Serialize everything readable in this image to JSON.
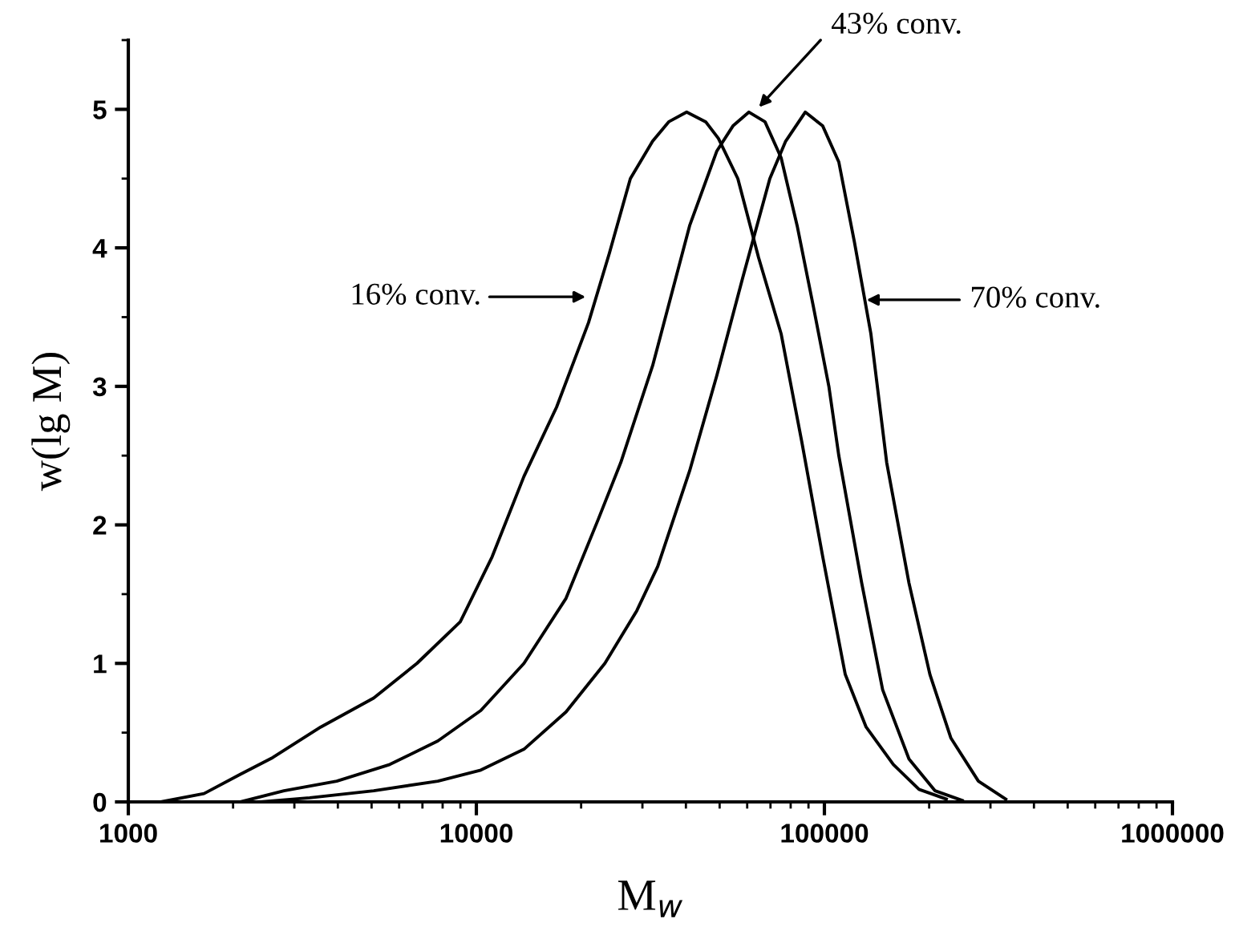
{
  "chart_data": {
    "type": "line",
    "xlabel": "M$_{w}$",
    "ylabel": "w(lg M)",
    "log": "x",
    "xlim": [
      1000,
      1000000
    ],
    "xticks": [
      1000,
      10000,
      100000,
      1000000
    ],
    "ylim": [
      0,
      5.5
    ],
    "yticks": [
      0,
      1,
      2,
      3,
      4,
      5
    ],
    "grid": false,
    "legend": false,
    "marker": "none",
    "line_style": "solid",
    "series": [
      {
        "color": "#000000",
        "x": [
          1240,
          1650,
          2100,
          2600,
          3570,
          5070,
          6750,
          8990,
          11100,
          13700,
          17000,
          21000,
          24100,
          27700,
          32100,
          35700,
          40200,
          45600,
          49600,
          56400,
          64700,
          75100,
          86100,
          98900,
          114800,
          131800,
          157800,
          187000,
          224000
        ],
        "values": [
          0,
          0.06,
          0.2,
          0.32,
          0.54,
          0.75,
          1.0,
          1.3,
          1.77,
          2.35,
          2.85,
          3.46,
          3.96,
          4.5,
          4.77,
          4.91,
          4.98,
          4.91,
          4.79,
          4.5,
          3.93,
          3.38,
          2.6,
          1.77,
          0.92,
          0.54,
          0.27,
          0.09,
          0.02
        ]
      },
      {
        "color": "#000000",
        "x": [
          2100,
          2800,
          3970,
          5640,
          7750,
          10300,
          13700,
          18100,
          22400,
          26000,
          32100,
          41000,
          49100,
          54600,
          60700,
          67500,
          75100,
          83500,
          92900,
          103000,
          110000,
          128000,
          147000,
          175000,
          208000,
          249000
        ],
        "values": [
          0,
          0.08,
          0.15,
          0.27,
          0.44,
          0.66,
          1.0,
          1.47,
          2.04,
          2.45,
          3.15,
          4.16,
          4.7,
          4.88,
          4.98,
          4.91,
          4.65,
          4.16,
          3.58,
          3.0,
          2.5,
          1.58,
          0.81,
          0.31,
          0.08,
          0.01
        ]
      },
      {
        "color": "#000000",
        "x": [
          2400,
          3320,
          5070,
          7750,
          10300,
          13700,
          18100,
          23400,
          28900,
          33200,
          41000,
          49100,
          58200,
          69700,
          77400,
          88100,
          98900,
          110000,
          122000,
          136000,
          151000,
          175000,
          201000,
          231000,
          277000,
          332000
        ],
        "values": [
          0,
          0.03,
          0.08,
          0.15,
          0.23,
          0.38,
          0.65,
          1.0,
          1.38,
          1.7,
          2.39,
          3.08,
          3.78,
          4.5,
          4.77,
          4.98,
          4.88,
          4.62,
          4.04,
          3.38,
          2.45,
          1.58,
          0.92,
          0.46,
          0.15,
          0.02
        ]
      }
    ],
    "annotations": [
      "16% conv.",
      "43% conv.",
      "70% conv."
    ]
  }
}
